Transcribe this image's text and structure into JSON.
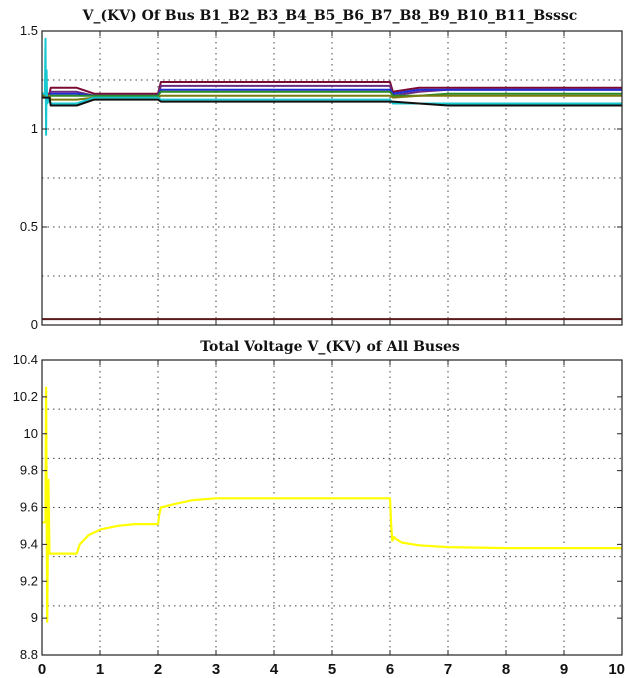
{
  "chart_data": [
    {
      "type": "line",
      "title": "V_(KV) Of Bus B1_B2_B3_B4_B5_B6_B7_B8_B9_B10_B11_Bsssc",
      "xlim": [
        0,
        10
      ],
      "ylim": [
        0,
        1.5
      ],
      "xticks": [],
      "yticks": [
        {
          "value": 0,
          "label": "0"
        },
        {
          "value": 0.5,
          "label": "0.5"
        },
        {
          "value": 1,
          "label": "1"
        },
        {
          "value": 1.5,
          "label": "1.5"
        }
      ],
      "grid": "dotted",
      "background": "#ffffff",
      "series": [
        {
          "color": "#7a0a34",
          "x": [
            0,
            0.13,
            0.15,
            0.6,
            0.9,
            2,
            2.05,
            6,
            6.05,
            6.5,
            7,
            10
          ],
          "y": [
            1.18,
            1.18,
            1.21,
            1.21,
            1.18,
            1.18,
            1.24,
            1.24,
            1.19,
            1.21,
            1.21,
            1.21
          ]
        },
        {
          "color": "#6a2a82",
          "x": [
            0,
            0.13,
            0.15,
            0.6,
            0.9,
            2,
            2.05,
            6,
            6.05,
            6.5,
            7,
            10
          ],
          "y": [
            1.17,
            1.17,
            1.19,
            1.19,
            1.17,
            1.17,
            1.22,
            1.22,
            1.17,
            1.19,
            1.2,
            1.2
          ]
        },
        {
          "color": "#1e2dd6",
          "x": [
            0,
            0.13,
            0.15,
            0.6,
            0.9,
            2,
            2.05,
            6,
            6.05,
            6.5,
            7,
            10
          ],
          "y": [
            1.17,
            1.17,
            1.18,
            1.18,
            1.17,
            1.17,
            1.2,
            1.2,
            1.18,
            1.2,
            1.2,
            1.2
          ]
        },
        {
          "color": "#2a8a2a",
          "x": [
            0,
            0.13,
            0.15,
            0.6,
            0.9,
            2,
            2.05,
            6,
            6.05,
            6.5,
            7,
            10
          ],
          "y": [
            1.17,
            1.17,
            1.17,
            1.17,
            1.17,
            1.17,
            1.19,
            1.19,
            1.17,
            1.17,
            1.18,
            1.18
          ]
        },
        {
          "color": "#7a7a10",
          "x": [
            0,
            0.13,
            0.15,
            0.6,
            0.9,
            2,
            2.05,
            6,
            6.05,
            6.5,
            7,
            10
          ],
          "y": [
            1.17,
            1.17,
            1.15,
            1.15,
            1.16,
            1.16,
            1.17,
            1.17,
            1.16,
            1.17,
            1.17,
            1.17
          ]
        },
        {
          "color": "#18c8d0",
          "x": [
            0,
            0.05,
            0.06,
            0.07,
            0.08,
            0.09,
            0.12,
            0.15,
            0.6,
            0.9,
            2,
            2.05,
            6,
            6.05,
            6.5,
            7,
            10
          ],
          "y": [
            1.18,
            1.18,
            1.46,
            0.97,
            1.3,
            1.13,
            1.15,
            1.13,
            1.13,
            1.16,
            1.16,
            1.15,
            1.15,
            1.13,
            1.13,
            1.13,
            1.13
          ]
        },
        {
          "color": "#111111",
          "x": [
            0,
            0.13,
            0.15,
            0.6,
            0.9,
            2,
            2.05,
            6,
            6.05,
            6.5,
            7,
            10
          ],
          "y": [
            1.16,
            1.16,
            1.12,
            1.12,
            1.15,
            1.15,
            1.14,
            1.14,
            1.14,
            1.13,
            1.12,
            1.12
          ]
        },
        {
          "color": "#5a1a1a",
          "x": [
            0,
            10
          ],
          "y": [
            0.03,
            0.03
          ]
        }
      ]
    },
    {
      "type": "line",
      "title": "Total Voltage V_(KV) of All Buses",
      "xlim": [
        0,
        10
      ],
      "ylim": [
        8.8,
        10.4
      ],
      "xticks": [
        {
          "value": 0,
          "label": "0"
        },
        {
          "value": 1,
          "label": "1"
        },
        {
          "value": 2,
          "label": "2"
        },
        {
          "value": 3,
          "label": "3"
        },
        {
          "value": 4,
          "label": "4"
        },
        {
          "value": 5,
          "label": "5"
        },
        {
          "value": 6,
          "label": "6"
        },
        {
          "value": 7,
          "label": "7"
        },
        {
          "value": 8,
          "label": "8"
        },
        {
          "value": 9,
          "label": "9"
        },
        {
          "value": 10,
          "label": "10"
        }
      ],
      "yticks": [
        {
          "value": 8.8,
          "label": "8.8"
        },
        {
          "value": 9,
          "label": "9"
        },
        {
          "value": 9.2,
          "label": "9.2"
        },
        {
          "value": 9.4,
          "label": "9.4"
        },
        {
          "value": 9.6,
          "label": "9.6"
        },
        {
          "value": 9.8,
          "label": "9.8"
        },
        {
          "value": 10,
          "label": "10"
        },
        {
          "value": 10.2,
          "label": "10.2"
        },
        {
          "value": 10.4,
          "label": "10.4"
        }
      ],
      "grid": "dotted",
      "background": "#ffffff",
      "series": [
        {
          "color": "#ffff00",
          "x": [
            0,
            0.06,
            0.07,
            0.09,
            0.11,
            0.13,
            0.15,
            0.6,
            0.65,
            0.8,
            1.0,
            1.3,
            1.6,
            2,
            2.02,
            2.05,
            2.3,
            2.6,
            3,
            4,
            6,
            6.02,
            6.04,
            6.07,
            6.1,
            6.2,
            6.5,
            7,
            8,
            10
          ],
          "y": [
            9.52,
            9.52,
            10.25,
            8.98,
            9.75,
            9.35,
            9.35,
            9.35,
            9.4,
            9.45,
            9.48,
            9.5,
            9.51,
            9.51,
            9.56,
            9.6,
            9.62,
            9.64,
            9.65,
            9.65,
            9.65,
            9.5,
            9.42,
            9.44,
            9.43,
            9.41,
            9.395,
            9.385,
            9.38,
            9.38
          ]
        }
      ]
    }
  ]
}
